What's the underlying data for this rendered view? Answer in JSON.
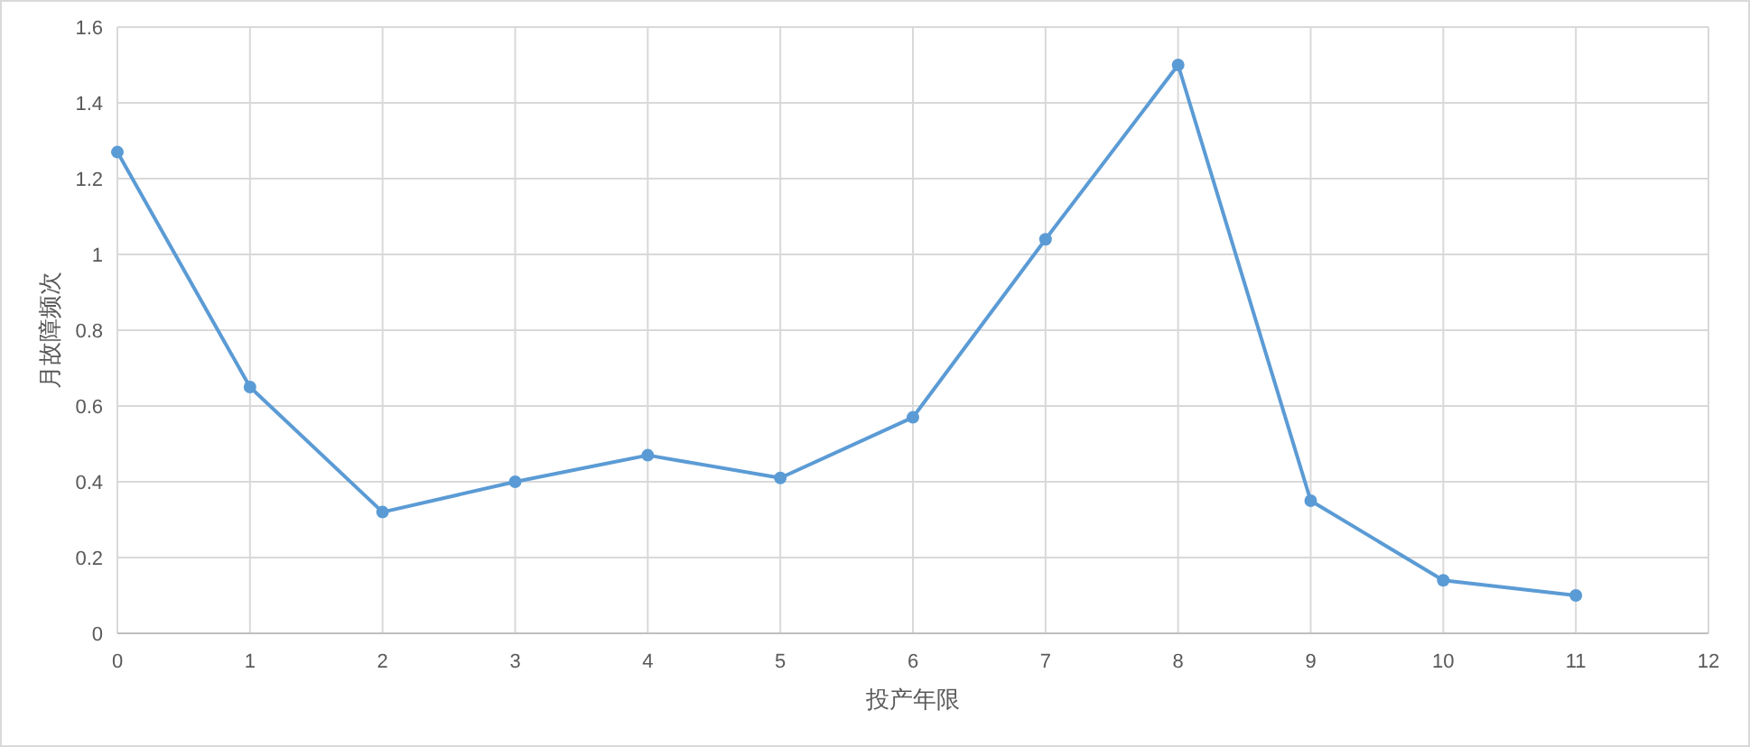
{
  "chart_data": {
    "type": "line",
    "xlabel": "投产年限",
    "ylabel": "月故障频次",
    "x": [
      0,
      1,
      2,
      3,
      4,
      5,
      6,
      7,
      8,
      9,
      10,
      11
    ],
    "series": [
      {
        "color": "#5b9bd5",
        "values": [
          1.27,
          0.65,
          0.32,
          0.4,
          0.47,
          0.41,
          0.57,
          1.04,
          1.5,
          0.35,
          0.14,
          0.1
        ]
      }
    ],
    "xlim": [
      0,
      12
    ],
    "xticks": [
      0,
      1,
      2,
      3,
      4,
      5,
      6,
      7,
      8,
      9,
      10,
      11,
      12
    ],
    "ylim": [
      0,
      1.6
    ],
    "yticks": [
      0,
      0.2,
      0.4,
      0.6,
      0.8,
      1,
      1.2,
      1.4,
      1.6
    ],
    "grid": true,
    "marker": "circle",
    "line_style": "solid"
  }
}
